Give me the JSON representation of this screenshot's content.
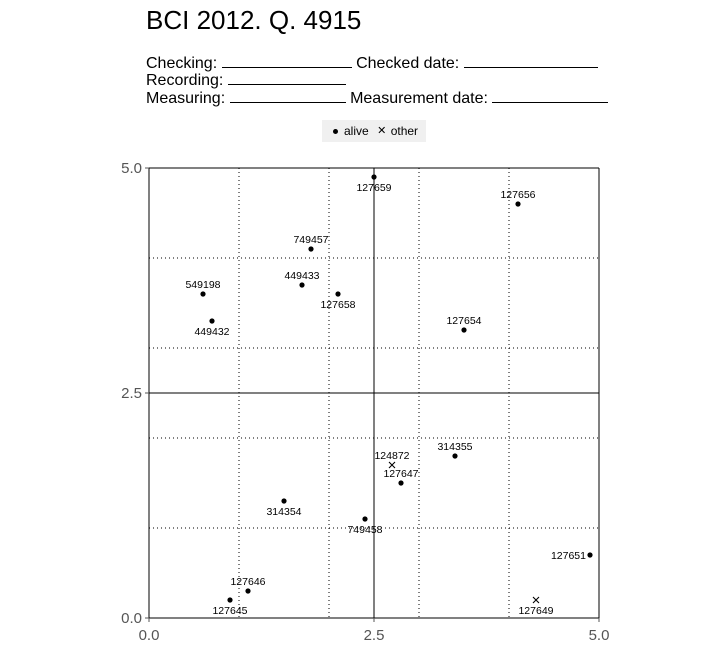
{
  "header": {
    "title": "BCI 2012. Q. 4915",
    "checking_label": "Checking:",
    "checked_date_label": "Checked date:",
    "recording_label": "Recording:",
    "measuring_label": "Measuring:",
    "measurement_date_label": "Measurement date:"
  },
  "legend": {
    "items": [
      {
        "symbol": "dot",
        "label": "alive"
      },
      {
        "symbol": "cross",
        "label": "other"
      }
    ]
  },
  "chart_data": {
    "type": "scatter",
    "title": "BCI 2012. Q. 4915",
    "xlabel": "",
    "ylabel": "",
    "xlim": [
      0,
      5
    ],
    "ylim": [
      0,
      5
    ],
    "x_ticks": [
      "0.0",
      "2.5",
      "5.0"
    ],
    "y_ticks": [
      "0.0",
      "2.5",
      "5.0"
    ],
    "grid": {
      "major": [
        0,
        2.5,
        5
      ],
      "minor": [
        1,
        2,
        3,
        4
      ]
    },
    "legend_position": "top",
    "series": [
      {
        "name": "alive",
        "marker": "dot",
        "points": [
          {
            "x": 2.5,
            "y": 4.9,
            "label": "127659",
            "label_pos": "below"
          },
          {
            "x": 4.1,
            "y": 4.6,
            "label": "127656",
            "label_pos": "above"
          },
          {
            "x": 1.8,
            "y": 4.1,
            "label": "749457",
            "label_pos": "above"
          },
          {
            "x": 1.7,
            "y": 3.7,
            "label": "449433",
            "label_pos": "above"
          },
          {
            "x": 2.1,
            "y": 3.6,
            "label": "127658",
            "label_pos": "below"
          },
          {
            "x": 0.6,
            "y": 3.6,
            "label": "549198",
            "label_pos": "above"
          },
          {
            "x": 0.7,
            "y": 3.3,
            "label": "449432",
            "label_pos": "below"
          },
          {
            "x": 3.5,
            "y": 3.2,
            "label": "127654",
            "label_pos": "above"
          },
          {
            "x": 3.4,
            "y": 1.8,
            "label": "314355",
            "label_pos": "above"
          },
          {
            "x": 2.8,
            "y": 1.5,
            "label": "127647",
            "label_pos": "above"
          },
          {
            "x": 1.5,
            "y": 1.3,
            "label": "314354",
            "label_pos": "below"
          },
          {
            "x": 2.4,
            "y": 1.1,
            "label": "749458",
            "label_pos": "below"
          },
          {
            "x": 4.9,
            "y": 0.7,
            "label": "127651",
            "label_pos": "left"
          },
          {
            "x": 1.1,
            "y": 0.3,
            "label": "127646",
            "label_pos": "above"
          },
          {
            "x": 0.9,
            "y": 0.2,
            "label": "127645",
            "label_pos": "below"
          }
        ]
      },
      {
        "name": "other",
        "marker": "cross",
        "points": [
          {
            "x": 2.7,
            "y": 1.7,
            "label": "124872",
            "label_pos": "above"
          },
          {
            "x": 4.3,
            "y": 0.2,
            "label": "127649",
            "label_pos": "below"
          }
        ]
      }
    ]
  }
}
